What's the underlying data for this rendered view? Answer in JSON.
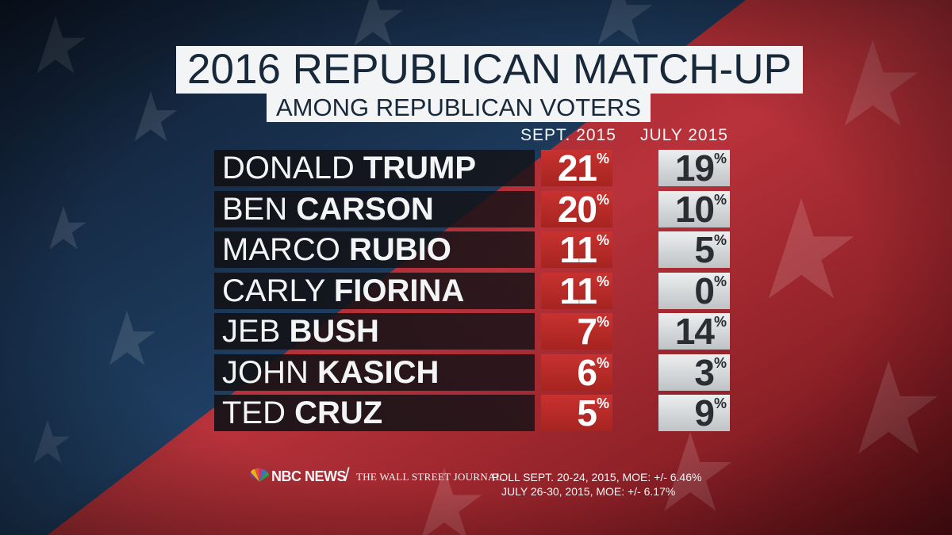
{
  "title": "2016 REPUBLICAN MATCH-UP",
  "subtitle": "AMONG REPUBLICAN VOTERS",
  "columns": {
    "sept": "SEPT. 2015",
    "july": "JULY 2015"
  },
  "percent_symbol": "%",
  "chart_data": {
    "type": "table",
    "title": "2016 REPUBLICAN MATCH-UP",
    "subtitle": "AMONG REPUBLICAN VOTERS",
    "columns": [
      "SEPT. 2015",
      "JULY 2015"
    ],
    "rows": [
      {
        "first": "DONALD",
        "last": "TRUMP",
        "sept": 21,
        "july": 19
      },
      {
        "first": "BEN",
        "last": "CARSON",
        "sept": 20,
        "july": 10
      },
      {
        "first": "MARCO",
        "last": "RUBIO",
        "sept": 11,
        "july": 5
      },
      {
        "first": "CARLY",
        "last": "FIORINA",
        "sept": 11,
        "july": 0
      },
      {
        "first": "JEB",
        "last": "BUSH",
        "sept": 7,
        "july": 14
      },
      {
        "first": "JOHN",
        "last": "KASICH",
        "sept": 6,
        "july": 3
      },
      {
        "first": "TED",
        "last": "CRUZ",
        "sept": 5,
        "july": 9
      }
    ]
  },
  "footer": {
    "brand": "NBC NEWS",
    "slash": "/",
    "partner": "THE WALL STREET JOURNAL.",
    "line1": "POLL SEPT. 20-24, 2015, MOE: +/- 6.46%",
    "line2": "JULY 26-30, 2015, MOE: +/- 6.17%"
  },
  "colors": {
    "sept_fill": "#b82a27",
    "july_fill": "#d6d9db",
    "name_bar": "#141418",
    "title_box": "#f2f4f5",
    "title_text": "#17283a"
  }
}
